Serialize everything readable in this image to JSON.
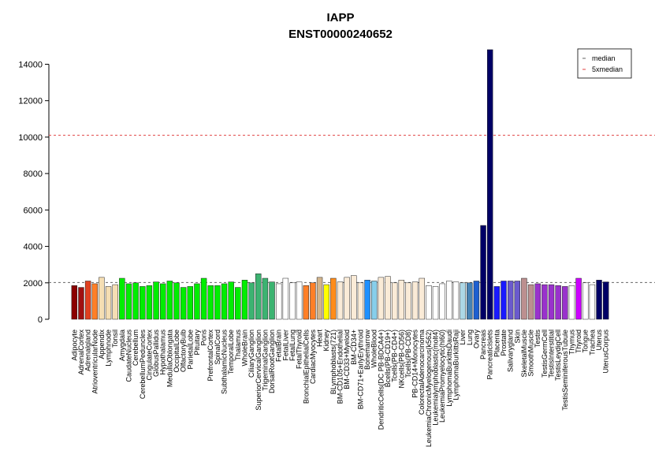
{
  "chart_data": {
    "type": "bar",
    "title": "IAPP",
    "subtitle": "ENST00000240652",
    "categories": [
      "Adipocyte",
      "AdrenalCortex",
      "Adrenalgland",
      "AtrioventricularNode",
      "Appendix",
      "Lymphnode",
      "Tonsil",
      "Amygdala",
      "CaudateNucleus",
      "Cerebellum",
      "CerebellumPeduncles",
      "CingulateCortex",
      "GlobusPallidus",
      "Hypothalamus",
      "MedullaOblongata",
      "OccipitalLobe",
      "OlfactoryBulb",
      "ParietalLobe",
      "Pituitary",
      "Pons",
      "PrefrontalCortex",
      "SpinalCord",
      "SubthalamicNucleus",
      "TemporalLobe",
      "Thalamus",
      "WholeBrain",
      "CiliaryGanglion",
      "SuperiorCervicalGanglion",
      "TrigeminalGanglion",
      "DorsalRootGanglion",
      "FetalBrain",
      "FetalLiver",
      "FetalLung",
      "FetalThyroid",
      "BronchialEpithelialCells",
      "CardiacMyocytes",
      "Heart",
      "Kidney",
      "BLymphoblasts(721)",
      "BM-CD105+Endothelial",
      "BM-CD33+Myeloid",
      "BM-CD34+",
      "BM-CD71+EarlyErythroid",
      "Bonemarrow",
      "WholeBlood",
      "DendriticCells(DC PB-BDCA4+)",
      "Bcells(PB-CD19+)",
      "Tcells(PB-CD4+)",
      "NKcells(PB-CD56)",
      "Tcells(PB-CD8)",
      "PB-CD14+Monocytes",
      "ColorectalAdenocarcinoma",
      "LeukemiaChronicMyelogenous(k562)",
      "Leukemialymphoblastic(molt4)",
      "LeukemiaPromyelocytic(hl60)",
      "LymphomaBurkittsDaudi",
      "LymphomaBurkittsRaji",
      "Liver",
      "Lung",
      "Ovary",
      "Pancreas",
      "PancreaticIslets",
      "Placenta",
      "Prostate",
      "Salivarygland",
      "Skin",
      "SkeletalMuscle",
      "SmoothMuscle",
      "Testis",
      "TestisGermCell",
      "TestisInterstitial",
      "TestisLeydigCell",
      "TestisSeminiferousTubule",
      "Thymus",
      "Thyroid",
      "Tongue",
      "Trachea",
      "Uterus",
      "UterusCorpus"
    ],
    "values": [
      1850,
      1750,
      2100,
      1950,
      2300,
      1800,
      1900,
      2250,
      1950,
      2000,
      1800,
      1850,
      2050,
      1950,
      2100,
      2000,
      1750,
      1800,
      1950,
      2250,
      1850,
      1850,
      1950,
      2050,
      1750,
      2150,
      2000,
      2500,
      2250,
      2050,
      1950,
      2250,
      2000,
      2050,
      1850,
      2000,
      2300,
      1900,
      2250,
      2050,
      2300,
      2400,
      2000,
      2150,
      2100,
      2300,
      2350,
      2000,
      2150,
      2000,
      2050,
      2250,
      1850,
      1800,
      1950,
      2100,
      2050,
      2000,
      2000,
      2100,
      5150,
      14800,
      1800,
      2100,
      2100,
      2100,
      2250,
      1900,
      1950,
      1900,
      1900,
      1850,
      1800,
      1850,
      2250,
      2000,
      1900,
      2150,
      2050
    ],
    "colors": [
      "#8b0000",
      "#a01010",
      "#e04020",
      "#ff7f27",
      "#f5deb3",
      "#f5deb3",
      "#f5deb3",
      "#00ee00",
      "#00ee00",
      "#00ee00",
      "#00ee00",
      "#00ee00",
      "#00ee00",
      "#00ee00",
      "#00ee00",
      "#00ee00",
      "#00ee00",
      "#00ee00",
      "#00ee00",
      "#00ee00",
      "#00ee00",
      "#00ee00",
      "#00ee00",
      "#00ee00",
      "#00ee00",
      "#00ee00",
      "#3cb371",
      "#3cb371",
      "#3cb371",
      "#3cb371",
      "#ffffff",
      "#ffffff",
      "#ffffff",
      "#ffffff",
      "#ff7f27",
      "#ff7f27",
      "#d2b48c",
      "#ffff00",
      "#ff8c1a",
      "#faebd7",
      "#faebd7",
      "#faebd7",
      "#faebd7",
      "#1e90ff",
      "#87ceeb",
      "#faebd7",
      "#faebd7",
      "#faebd7",
      "#faebd7",
      "#faebd7",
      "#faebd7",
      "#faebd7",
      "#ffffff",
      "#ffffff",
      "#ffffff",
      "#ffffff",
      "#ffffff",
      "#add8e6",
      "#4682b4",
      "#1e5fd0",
      "#000066",
      "#000066",
      "#1a1aff",
      "#1a1aff",
      "#6a5acd",
      "#6a5acd",
      "#bc8f8f",
      "#bc8f8f",
      "#9932cc",
      "#9932cc",
      "#9932cc",
      "#9932cc",
      "#9932cc",
      "#ffffff",
      "#cc00ff",
      "#ffffff",
      "#ffffff",
      "#000066",
      "#000066"
    ],
    "reference_lines": [
      {
        "name": "median",
        "value": 2020,
        "color": "#666666"
      },
      {
        "name": "5xmedian",
        "value": 10100,
        "color": "#e04040"
      }
    ],
    "ylim": [
      0,
      14800
    ],
    "yticks": [
      0,
      2000,
      4000,
      6000,
      8000,
      10000,
      12000,
      14000
    ],
    "legend": "top-right"
  }
}
